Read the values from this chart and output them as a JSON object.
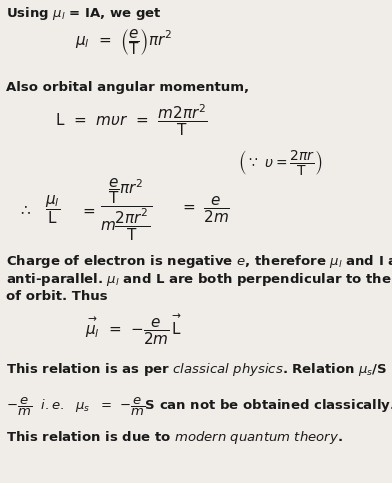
{
  "bg_color": "#f0ede8",
  "text_color": "#1a1a1a",
  "fig_width": 3.92,
  "fig_height": 4.83,
  "dpi": 100
}
